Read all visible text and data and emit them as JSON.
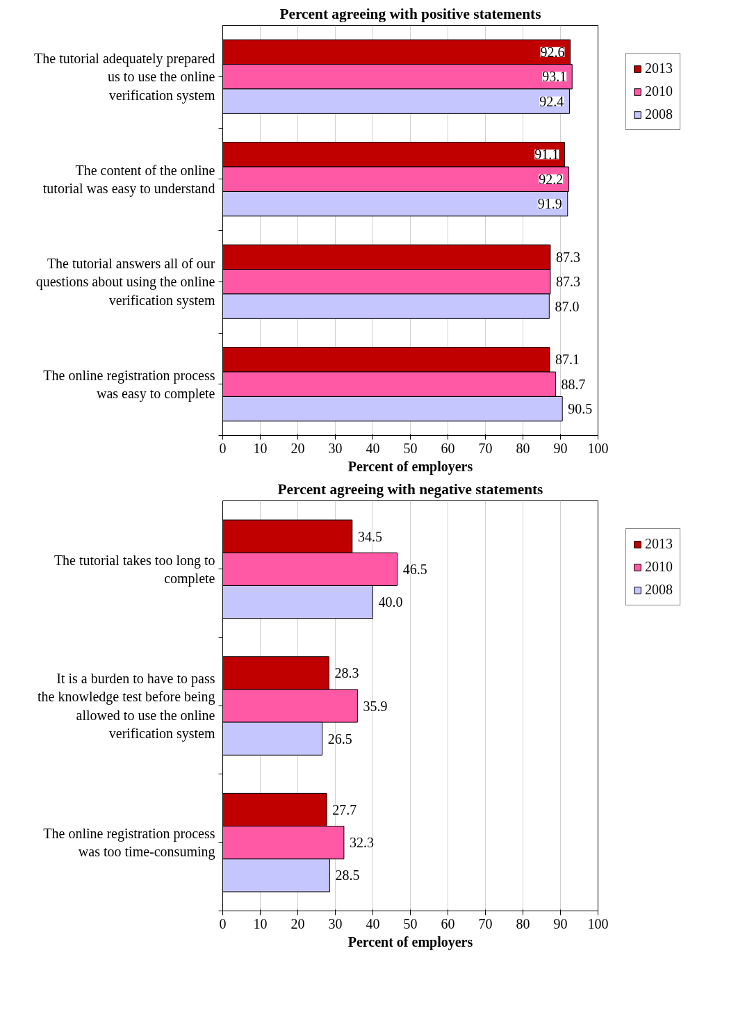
{
  "chart_data": [
    {
      "type": "bar",
      "orientation": "horizontal",
      "title": "Percent agreeing with positive statements",
      "xlabel": "Percent of employers",
      "categories": [
        "The tutorial adequately prepared us to use the online verification system",
        "The content of the online tutorial was easy to understand",
        "The tutorial answers all of our questions about using the online verification system",
        "The online registration process was easy to complete"
      ],
      "series": [
        {
          "name": "2013",
          "color": "#c00000",
          "values": [
            92.6,
            91.1,
            87.3,
            87.1
          ],
          "value_labels": [
            "92.6",
            "91.1",
            "87.3",
            "87.1"
          ]
        },
        {
          "name": "2010",
          "color": "#ff59a6",
          "values": [
            93.1,
            92.2,
            87.3,
            88.7
          ],
          "value_labels": [
            "93.1",
            "92.2",
            "87.3",
            "88.7"
          ]
        },
        {
          "name": "2008",
          "color": "#c6c6ff",
          "values": [
            92.4,
            91.9,
            87.0,
            90.5
          ],
          "value_labels": [
            "92.4",
            "91.9",
            "87.0",
            "90.5"
          ]
        }
      ],
      "xlim": [
        0,
        100
      ],
      "xticks": [
        0,
        10,
        20,
        30,
        40,
        50,
        60,
        70,
        80,
        90,
        100
      ],
      "grid": "x",
      "legend": "top right"
    },
    {
      "type": "bar",
      "orientation": "horizontal",
      "title": "Percent agreeing with negative statements",
      "xlabel": "Percent of employers",
      "categories": [
        "The tutorial takes too long to complete",
        "It is a burden to have to pass the knowledge test before being allowed to use the online verification system",
        "The online registration process was too time-consuming"
      ],
      "series": [
        {
          "name": "2013",
          "color": "#c00000",
          "values": [
            34.5,
            28.3,
            27.7
          ],
          "value_labels": [
            "34.5",
            "28.3",
            "27.7"
          ]
        },
        {
          "name": "2010",
          "color": "#ff59a6",
          "values": [
            46.5,
            35.9,
            32.3
          ],
          "value_labels": [
            "46.5",
            "35.9",
            "32.3"
          ]
        },
        {
          "name": "2008",
          "color": "#c6c6ff",
          "values": [
            40.0,
            26.5,
            28.5
          ],
          "value_labels": [
            "40.0",
            "26.5",
            "28.5"
          ]
        }
      ],
      "xlim": [
        0,
        100
      ],
      "xticks": [
        0,
        10,
        20,
        30,
        40,
        50,
        60,
        70,
        80,
        90,
        100
      ],
      "grid": "x",
      "legend": "top right"
    }
  ]
}
